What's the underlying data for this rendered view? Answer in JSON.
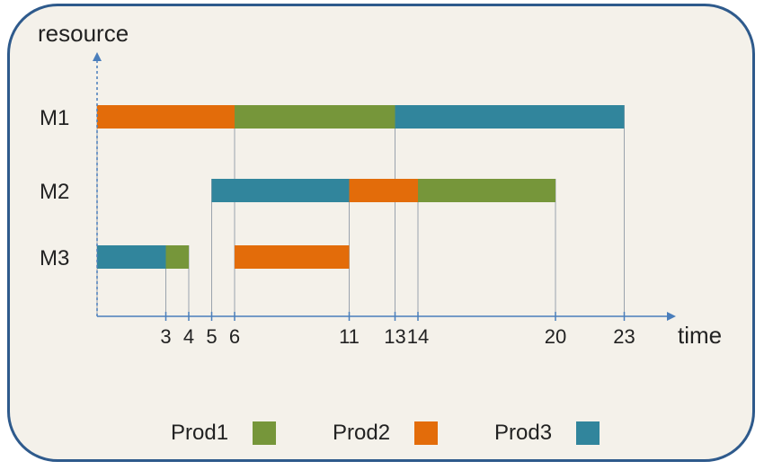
{
  "chart_data": {
    "type": "gantt",
    "xlabel": "time",
    "ylabel": "resource",
    "xlim": [
      0,
      25
    ],
    "resources": [
      "M1",
      "M2",
      "M3"
    ],
    "x_ticks": [
      3,
      4,
      5,
      6,
      11,
      13,
      14,
      20,
      23
    ],
    "legend": {
      "placement": "bottom",
      "items": [
        {
          "name": "Prod1",
          "color": "#76963a"
        },
        {
          "name": "Prod2",
          "color": "#e36c0a"
        },
        {
          "name": "Prod3",
          "color": "#31859c"
        }
      ]
    },
    "tasks": [
      {
        "resource": "M1",
        "product": "Prod2",
        "start": 0,
        "end": 6
      },
      {
        "resource": "M1",
        "product": "Prod1",
        "start": 6,
        "end": 13
      },
      {
        "resource": "M1",
        "product": "Prod3",
        "start": 13,
        "end": 23
      },
      {
        "resource": "M2",
        "product": "Prod3",
        "start": 5,
        "end": 11
      },
      {
        "resource": "M2",
        "product": "Prod2",
        "start": 11,
        "end": 14
      },
      {
        "resource": "M2",
        "product": "Prod1",
        "start": 14,
        "end": 20
      },
      {
        "resource": "M3",
        "product": "Prod3",
        "start": 0,
        "end": 3
      },
      {
        "resource": "M3",
        "product": "Prod1",
        "start": 3,
        "end": 4
      },
      {
        "resource": "M3",
        "product": "Prod2",
        "start": 6,
        "end": 11
      }
    ]
  }
}
